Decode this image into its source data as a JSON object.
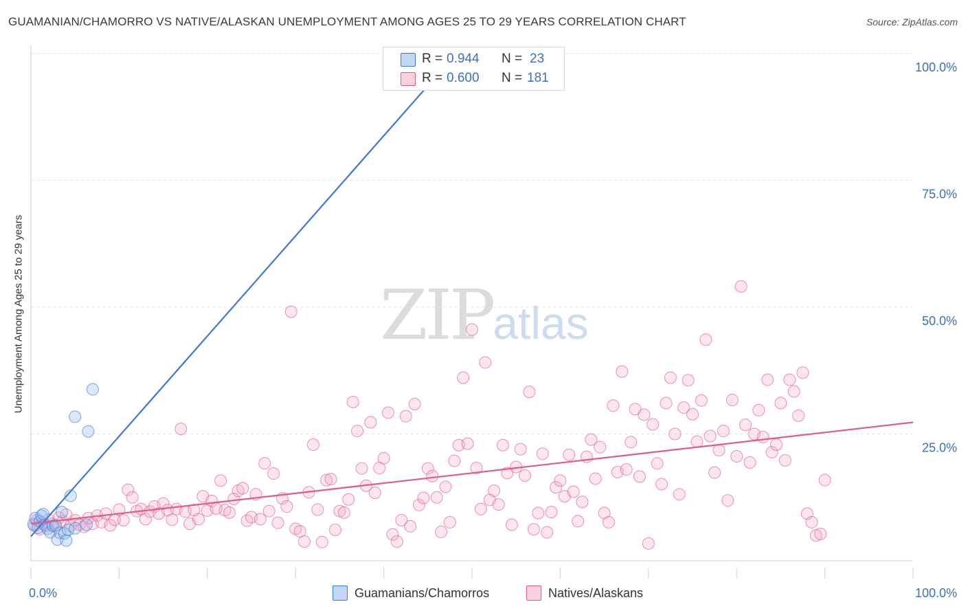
{
  "title": "GUAMANIAN/CHAMORRO VS NATIVE/ALASKAN UNEMPLOYMENT AMONG AGES 25 TO 29 YEARS CORRELATION CHART",
  "source": "Source: ZipAtlas.com",
  "watermark": {
    "zip": "ZIP",
    "atlas": "atlas"
  },
  "colors": {
    "blue": "#3a78d8",
    "blue_fill": "rgba(150,190,240,0.35)",
    "pink": "#e05a8a",
    "pink_fill": "rgba(244,170,195,0.30)",
    "axis_text": "#3a6fc4",
    "grid": "#e6e6e6"
  },
  "legend_top": {
    "rows": [
      {
        "r_label": "R =",
        "r_value": "0.944",
        "n_label": "N =",
        "n_value": "23",
        "swatch": "blue"
      },
      {
        "r_label": "R =",
        "r_value": "0.600",
        "n_label": "N =",
        "n_value": "181",
        "swatch": "pink"
      }
    ]
  },
  "legend_bottom": [
    {
      "label": "Guamanians/Chamorros",
      "swatch": "blue"
    },
    {
      "label": "Natives/Alaskans",
      "swatch": "pink"
    }
  ],
  "chart_data": {
    "type": "scatter",
    "title": "GUAMANIAN/CHAMORRO VS NATIVE/ALASKAN UNEMPLOYMENT AMONG AGES 25 TO 29 YEARS CORRELATION CHART",
    "xlabel": "",
    "ylabel": "Unemployment Among Ages 25 to 29 years",
    "xlim": [
      0,
      100
    ],
    "ylim": [
      0,
      100
    ],
    "x_tick_labels": [
      "0.0%",
      "100.0%"
    ],
    "y_ticks": [
      25,
      50,
      75,
      100
    ],
    "y_tick_labels": [
      "25.0%",
      "50.0%",
      "75.0%",
      "100.0%"
    ],
    "grid": true,
    "legend_placement": "top-center",
    "series": [
      {
        "name": "Guamanians/Chamorros",
        "color": "blue",
        "R": 0.944,
        "N": 23,
        "trendline": [
          [
            0,
            4.8
          ],
          [
            48.2,
            100
          ]
        ],
        "points": [
          [
            0.3,
            7.2
          ],
          [
            0.5,
            8.4
          ],
          [
            0.8,
            6.5
          ],
          [
            1.0,
            7.8
          ],
          [
            1.2,
            8.9
          ],
          [
            1.4,
            9.2
          ],
          [
            1.6,
            7.1
          ],
          [
            1.9,
            6.3
          ],
          [
            2.2,
            5.6
          ],
          [
            2.5,
            6.9
          ],
          [
            2.8,
            7.0
          ],
          [
            3.0,
            4.2
          ],
          [
            3.3,
            5.5
          ],
          [
            3.5,
            9.6
          ],
          [
            3.8,
            5.4
          ],
          [
            4.0,
            4.0
          ],
          [
            4.2,
            6.1
          ],
          [
            4.5,
            12.8
          ],
          [
            5.0,
            28.4
          ],
          [
            5.0,
            6.4
          ],
          [
            6.3,
            7.1
          ],
          [
            6.5,
            25.5
          ],
          [
            7.0,
            33.8
          ]
        ]
      },
      {
        "name": "Natives/Alaskans",
        "color": "pink",
        "R": 0.6,
        "N": 181,
        "trendline": [
          [
            0,
            7.3
          ],
          [
            100,
            27.3
          ]
        ],
        "points": [
          [
            0.4,
            6.9
          ],
          [
            0.7,
            8.0
          ],
          [
            1.0,
            6.2
          ],
          [
            1.3,
            7.5
          ],
          [
            1.7,
            6.8
          ],
          [
            2.0,
            8.1
          ],
          [
            2.4,
            7.3
          ],
          [
            2.8,
            6.7
          ],
          [
            3.2,
            8.5
          ],
          [
            3.6,
            7.8
          ],
          [
            4.0,
            9.1
          ],
          [
            4.5,
            6.9
          ],
          [
            5.0,
            8.0
          ],
          [
            5.5,
            7.1
          ],
          [
            6.0,
            6.7
          ],
          [
            6.5,
            8.4
          ],
          [
            7.0,
            7.3
          ],
          [
            7.5,
            8.9
          ],
          [
            8.0,
            7.6
          ],
          [
            8.5,
            9.3
          ],
          [
            9.0,
            7.0
          ],
          [
            9.5,
            8.1
          ],
          [
            10.0,
            10.1
          ],
          [
            10.5,
            8.0
          ],
          [
            11.0,
            14.0
          ],
          [
            11.5,
            12.5
          ],
          [
            12.0,
            9.8
          ],
          [
            12.5,
            10.2
          ],
          [
            13.0,
            8.2
          ],
          [
            13.5,
            9.7
          ],
          [
            14.0,
            10.7
          ],
          [
            14.5,
            9.3
          ],
          [
            15.0,
            11.3
          ],
          [
            15.5,
            10.0
          ],
          [
            16.0,
            8.1
          ],
          [
            16.5,
            10.2
          ],
          [
            17.0,
            26.0
          ],
          [
            17.5,
            9.7
          ],
          [
            18.0,
            7.3
          ],
          [
            18.5,
            10.0
          ],
          [
            19.0,
            8.2
          ],
          [
            19.5,
            12.7
          ],
          [
            20.0,
            9.9
          ],
          [
            20.5,
            11.8
          ],
          [
            21.0,
            10.3
          ],
          [
            21.5,
            15.8
          ],
          [
            22.0,
            10.0
          ],
          [
            22.5,
            9.5
          ],
          [
            23.0,
            12.2
          ],
          [
            23.5,
            13.8
          ],
          [
            24.0,
            14.3
          ],
          [
            24.5,
            7.9
          ],
          [
            25.0,
            8.6
          ],
          [
            25.5,
            13.1
          ],
          [
            26.0,
            8.2
          ],
          [
            26.5,
            19.2
          ],
          [
            27.0,
            9.8
          ],
          [
            27.5,
            17.2
          ],
          [
            28.0,
            7.5
          ],
          [
            28.5,
            12.3
          ],
          [
            29.0,
            10.7
          ],
          [
            29.5,
            49.1
          ],
          [
            30.0,
            6.3
          ],
          [
            30.5,
            5.8
          ],
          [
            31.0,
            3.8
          ],
          [
            31.5,
            13.5
          ],
          [
            32.0,
            22.9
          ],
          [
            32.5,
            10.1
          ],
          [
            33.0,
            3.7
          ],
          [
            33.5,
            15.9
          ],
          [
            34.0,
            16.1
          ],
          [
            34.5,
            6.1
          ],
          [
            35.0,
            9.8
          ],
          [
            35.5,
            9.5
          ],
          [
            36.0,
            12.1
          ],
          [
            36.5,
            31.3
          ],
          [
            37.0,
            25.6
          ],
          [
            37.5,
            18.2
          ],
          [
            38.0,
            14.8
          ],
          [
            38.5,
            27.3
          ],
          [
            39.0,
            13.4
          ],
          [
            39.5,
            18.3
          ],
          [
            40.0,
            20.2
          ],
          [
            40.5,
            29.2
          ],
          [
            41.0,
            5.2
          ],
          [
            41.5,
            3.8
          ],
          [
            42.0,
            8.0
          ],
          [
            42.5,
            28.5
          ],
          [
            43.0,
            6.8
          ],
          [
            43.5,
            30.9
          ],
          [
            44.0,
            11.0
          ],
          [
            44.5,
            12.4
          ],
          [
            45.0,
            18.2
          ],
          [
            45.5,
            16.7
          ],
          [
            46.0,
            12.5
          ],
          [
            46.5,
            5.7
          ],
          [
            47.0,
            14.6
          ],
          [
            47.5,
            7.6
          ],
          [
            48.0,
            19.7
          ],
          [
            48.5,
            22.8
          ],
          [
            49.0,
            36.1
          ],
          [
            49.5,
            23.1
          ],
          [
            50.0,
            45.6
          ],
          [
            50.5,
            18.3
          ],
          [
            51.0,
            10.2
          ],
          [
            51.5,
            39.1
          ],
          [
            52.0,
            12.0
          ],
          [
            52.5,
            13.8
          ],
          [
            53.0,
            11.1
          ],
          [
            53.5,
            22.8
          ],
          [
            54.0,
            17.3
          ],
          [
            54.5,
            7.1
          ],
          [
            55.0,
            18.5
          ],
          [
            55.5,
            22.0
          ],
          [
            56.0,
            16.8
          ],
          [
            56.5,
            33.3
          ],
          [
            57.0,
            6.2
          ],
          [
            57.5,
            9.4
          ],
          [
            58.0,
            21.1
          ],
          [
            58.5,
            5.6
          ],
          [
            59.0,
            9.6
          ],
          [
            59.5,
            14.5
          ],
          [
            60.0,
            15.8
          ],
          [
            60.5,
            12.7
          ],
          [
            61.0,
            20.9
          ],
          [
            61.5,
            13.6
          ],
          [
            62.0,
            7.8
          ],
          [
            62.5,
            11.6
          ],
          [
            63.0,
            20.5
          ],
          [
            63.5,
            23.9
          ],
          [
            64.0,
            16.2
          ],
          [
            64.5,
            22.4
          ],
          [
            65.0,
            9.4
          ],
          [
            65.5,
            7.6
          ],
          [
            66.0,
            30.6
          ],
          [
            66.5,
            17.5
          ],
          [
            67.0,
            37.3
          ],
          [
            67.5,
            18.0
          ],
          [
            68.0,
            23.4
          ],
          [
            68.5,
            29.9
          ],
          [
            69.0,
            16.6
          ],
          [
            69.5,
            28.8
          ],
          [
            70.0,
            3.4
          ],
          [
            70.5,
            26.9
          ],
          [
            71.0,
            19.2
          ],
          [
            71.5,
            15.1
          ],
          [
            72.0,
            31.1
          ],
          [
            72.5,
            36.1
          ],
          [
            73.0,
            25.0
          ],
          [
            73.5,
            13.1
          ],
          [
            74.0,
            30.2
          ],
          [
            74.5,
            35.6
          ],
          [
            75.0,
            28.9
          ],
          [
            75.5,
            23.5
          ],
          [
            76.0,
            31.6
          ],
          [
            76.5,
            43.6
          ],
          [
            77.0,
            24.6
          ],
          [
            77.5,
            17.4
          ],
          [
            78.0,
            21.8
          ],
          [
            78.5,
            25.6
          ],
          [
            79.0,
            11.9
          ],
          [
            79.5,
            31.7
          ],
          [
            80.0,
            20.6
          ],
          [
            80.5,
            54.1
          ],
          [
            81.0,
            26.8
          ],
          [
            81.5,
            19.4
          ],
          [
            82.0,
            25.0
          ],
          [
            82.5,
            29.7
          ],
          [
            83.0,
            24.4
          ],
          [
            83.5,
            35.7
          ],
          [
            84.0,
            21.4
          ],
          [
            84.5,
            22.9
          ],
          [
            85.0,
            31.1
          ],
          [
            85.5,
            19.8
          ],
          [
            86.0,
            35.7
          ],
          [
            86.5,
            33.4
          ],
          [
            87.0,
            28.6
          ],
          [
            87.5,
            37.1
          ],
          [
            88.0,
            9.3
          ],
          [
            88.5,
            7.6
          ],
          [
            89.0,
            5.0
          ],
          [
            89.5,
            5.3
          ],
          [
            90.0,
            15.9
          ]
        ]
      }
    ]
  }
}
